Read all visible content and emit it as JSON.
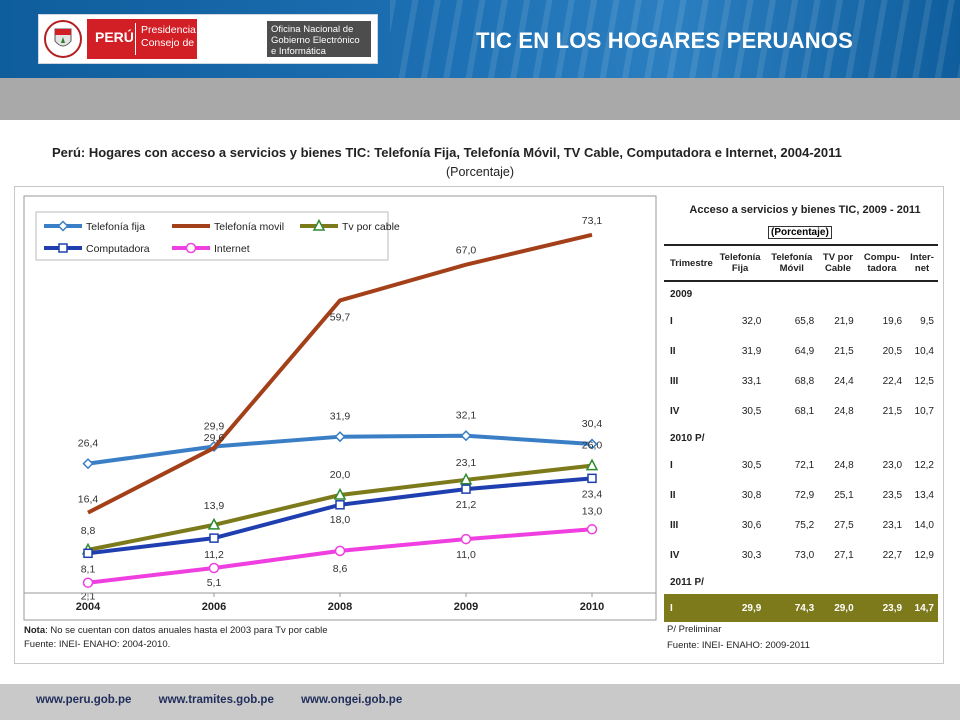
{
  "header": {
    "peru": "PERÚ",
    "peru_sub": "Presidencia del Consejo de Ministros",
    "onge": "Oficina Nacional de Gobierno Electrónico e Informática",
    "title": "TIC EN LOS HOGARES PERUANOS"
  },
  "chart_title": "Perú: Hogares con acceso a servicios y bienes TIC: Telefonía Fija, Telefonía Móvil, TV Cable, Computadora e Internet, 2004-2011",
  "chart_subtitle": "(Porcentaje)",
  "chart_data": {
    "type": "line",
    "title": "",
    "xlabel": "",
    "ylabel": "",
    "categories": [
      "2004",
      "2006",
      "2008",
      "2009",
      "2010"
    ],
    "ylim": [
      0,
      80
    ],
    "grid": false,
    "legend": "top",
    "series": [
      {
        "name": "Telefonía fija",
        "values": [
          26.4,
          29.9,
          31.9,
          32.1,
          30.4
        ],
        "labels": [
          "26,4",
          "29,9",
          "31,9",
          "32,1",
          "30,4"
        ],
        "color": "#3a7fc6",
        "marker": "diamond"
      },
      {
        "name": "Telefonía movil",
        "values": [
          16.4,
          29.6,
          59.7,
          67.0,
          73.1
        ],
        "labels": [
          "16,4",
          "29,6",
          "59,7",
          "67,0",
          "73,1"
        ],
        "color": "#a3401a",
        "marker": "none"
      },
      {
        "name": "Tv por cable",
        "values": [
          8.8,
          13.9,
          20.0,
          23.1,
          26.0
        ],
        "labels": [
          "8,8",
          "13,9",
          "20,0",
          "23,1",
          "26,0"
        ],
        "color": "#7c7a1b",
        "marker": "triangle"
      },
      {
        "name": "Computadora",
        "values": [
          8.1,
          11.2,
          18.0,
          21.2,
          23.4
        ],
        "labels": [
          "8,1",
          "11,2",
          "18,0",
          "21,2",
          "23,4"
        ],
        "color": "#1f3fb0",
        "marker": "square"
      },
      {
        "name": "Internet",
        "values": [
          2.1,
          5.1,
          8.6,
          11.0,
          13.0
        ],
        "labels": [
          "2,1",
          "5,1",
          "8,6",
          "11,0",
          "13,0"
        ],
        "color": "#ef3fe0",
        "marker": "circle"
      }
    ]
  },
  "chart_note": {
    "nota_label": "Nota",
    "nota_text": ": No se cuentan con datos anuales hasta el 2003 para Tv por cable",
    "fuente": "Fuente: INEI- ENAHO: 2004-2010."
  },
  "table": {
    "title": "Acceso a servicios y bienes TIC, 2009 - 2011",
    "unit": "(Porcentaje)",
    "headers": [
      "Trimestre",
      "Telefonía Fija",
      "Telefonía Móvil",
      "TV por Cable",
      "Compu-tadora",
      "Inter-net"
    ],
    "sections": [
      {
        "year": "2009",
        "rows": [
          {
            "q": "I",
            "v": [
              "32,0",
              "65,8",
              "21,9",
              "19,6",
              "9,5"
            ]
          },
          {
            "q": "II",
            "v": [
              "31,9",
              "64,9",
              "21,5",
              "20,5",
              "10,4"
            ]
          },
          {
            "q": "III",
            "v": [
              "33,1",
              "68,8",
              "24,4",
              "22,4",
              "12,5"
            ]
          },
          {
            "q": "IV",
            "v": [
              "30,5",
              "68,1",
              "24,8",
              "21,5",
              "10,7"
            ]
          }
        ]
      },
      {
        "year": "2010 P/",
        "rows": [
          {
            "q": "I",
            "v": [
              "30,5",
              "72,1",
              "24,8",
              "23,0",
              "12,2"
            ]
          },
          {
            "q": "II",
            "v": [
              "30,8",
              "72,9",
              "25,1",
              "23,5",
              "13,4"
            ]
          },
          {
            "q": "III",
            "v": [
              "30,6",
              "75,2",
              "27,5",
              "23,1",
              "14,0"
            ]
          },
          {
            "q": "IV",
            "v": [
              "30,3",
              "73,0",
              "27,1",
              "22,7",
              "12,9"
            ]
          }
        ]
      },
      {
        "year": "2011 P/",
        "rows": [
          {
            "q": "I",
            "v": [
              "29,9",
              "74,3",
              "29,0",
              "23,9",
              "14,7"
            ],
            "highlight": true
          }
        ]
      }
    ],
    "note1": "P/ Preliminar",
    "note2": "Fuente: INEI- ENAHO: 2009-2011"
  },
  "footer": {
    "links": [
      "www.peru.gob.pe",
      "www.tramites.gob.pe",
      "www.ongei.gob.pe"
    ]
  }
}
